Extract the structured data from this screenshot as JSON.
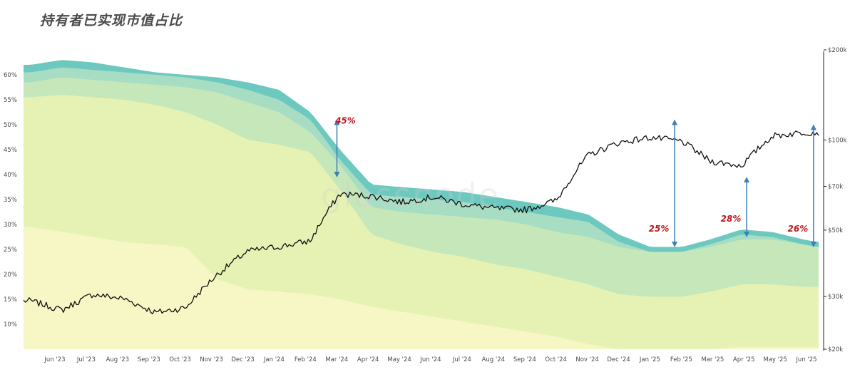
{
  "chart_data": {
    "type": "area",
    "title": "持有者已实现市值占比",
    "x": [
      "2023-05-15",
      "2023-06-15",
      "2023-07-15",
      "2023-08-15",
      "2023-09-15",
      "2023-10-15",
      "2023-11-15",
      "2023-12-15",
      "2024-01-15",
      "2024-02-15",
      "2024-03-15",
      "2024-04-15",
      "2024-05-15",
      "2024-06-15",
      "2024-07-15",
      "2024-08-15",
      "2024-09-15",
      "2024-10-15",
      "2024-11-15",
      "2024-12-15",
      "2025-01-15",
      "2025-02-15",
      "2025-03-15",
      "2025-04-15",
      "2025-05-15",
      "2025-06-15",
      "2025-06-28"
    ],
    "x_tick_labels": [
      "Jun '23",
      "Jul '23",
      "Aug '23",
      "Sep '23",
      "Oct '23",
      "Nov '23",
      "Dec '23",
      "Jan '24",
      "Feb '24",
      "Mar '24",
      "Apr '24",
      "May '24",
      "Jun '24",
      "Jul '24",
      "Aug '24",
      "Sep '24",
      "Oct '24",
      "Nov '24",
      "Dec '24",
      "Jan '25",
      "Feb '25",
      "Mar '25",
      "Apr '25",
      "May '25",
      "Jun '25"
    ],
    "y_left": {
      "ylim": [
        5,
        65
      ],
      "unit": "%",
      "tick_labels": [
        "10%",
        "15%",
        "20%",
        "25%",
        "30%",
        "35%",
        "40%",
        "45%",
        "50%",
        "55%",
        "60%"
      ]
    },
    "y_right": {
      "scale": "log",
      "ylim": [
        20000,
        200000
      ],
      "tick_labels": [
        "$20k",
        "$30k",
        "$50k",
        "$70k",
        "$100k",
        "$200k"
      ]
    },
    "series": [
      {
        "color": "#f7f7c6",
        "values": [
          29.5,
          28.5,
          27.5,
          26.5,
          26,
          25.5,
          19,
          17,
          16.5,
          16,
          15,
          13.5,
          12.5,
          11.5,
          10.5,
          9.5,
          8.5,
          7.5,
          6,
          5,
          5,
          5,
          5,
          5.5,
          5.5,
          5.5,
          5.5
        ]
      },
      {
        "color": "#e6f2b4",
        "values": [
          55.5,
          56,
          55.5,
          55,
          54,
          52.5,
          50,
          47,
          46,
          44.5,
          37,
          28,
          26,
          24.5,
          23.5,
          22,
          21,
          19.5,
          18,
          16,
          15.5,
          15.5,
          16.5,
          18,
          18,
          17.5,
          17.5
        ]
      },
      {
        "color": "#c6e7ba",
        "values": [
          58.5,
          59.5,
          59,
          58.5,
          58,
          57.5,
          56.5,
          54.5,
          52.5,
          48.5,
          42,
          33.5,
          32.5,
          32,
          31.5,
          31,
          30,
          28.5,
          27.5,
          25.5,
          24.5,
          24.5,
          25.5,
          27,
          27,
          26,
          25.5
        ]
      },
      {
        "color": "#a6ddc3",
        "values": [
          60.5,
          61.5,
          61,
          60.5,
          60,
          59.5,
          58.5,
          57,
          55,
          51,
          43,
          36,
          35.5,
          35,
          34.5,
          33.5,
          32.5,
          31.5,
          30.5,
          26.5,
          24.5,
          24.5,
          26,
          28,
          27.5,
          26,
          25.5
        ]
      },
      {
        "color": "#6dc9bf",
        "values": [
          62,
          63,
          62.5,
          61.5,
          60.5,
          60,
          59.5,
          58.5,
          57,
          52.5,
          45,
          38,
          37.5,
          37,
          36.5,
          35.5,
          34.5,
          33.5,
          32,
          28,
          25.5,
          25.5,
          27,
          29,
          28.5,
          27,
          26.5
        ]
      }
    ],
    "price": {
      "color": "#111111",
      "values": [
        29000,
        27000,
        30500,
        29500,
        26500,
        27500,
        35500,
        42500,
        44000,
        46000,
        66000,
        65000,
        62000,
        64500,
        61000,
        59000,
        58500,
        63000,
        89000,
        98000,
        102000,
        99000,
        85000,
        82000,
        103000,
        106000,
        106000
      ]
    },
    "annotations": [
      {
        "label": "45%",
        "date": "2024-03-12",
        "from": 50.5,
        "to": 40
      },
      {
        "label": "25%",
        "date": "2025-02-08",
        "from": 50.5,
        "to": 26
      },
      {
        "label": "28%",
        "date": "2025-04-20",
        "from": 39,
        "to": 28
      },
      {
        "label": "26%",
        "date": "2025-06-25",
        "from": 49.5,
        "to": 26
      }
    ],
    "watermark": "glassnode"
  }
}
